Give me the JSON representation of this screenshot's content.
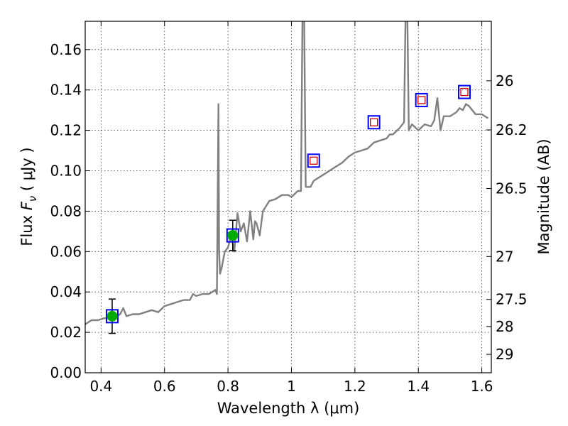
{
  "chart_data": {
    "type": "line",
    "xlabel": "Wavelength  λ (μm)",
    "ylabel": "Flux  F_ν  ( μJy )",
    "ylabel_parts": {
      "prefix": "Flux  ",
      "symbol": "F",
      "sub": "ν",
      "unit": "  ( μJy )"
    },
    "y2label": "Magnitude (AB)",
    "xlim": [
      0.35,
      1.63
    ],
    "ylim": [
      0.0,
      0.174
    ],
    "grid": true,
    "x_ticks": [
      {
        "v": 0.4,
        "label": "0.4"
      },
      {
        "v": 0.6,
        "label": "0.6"
      },
      {
        "v": 0.8,
        "label": "0.8"
      },
      {
        "v": 1.0,
        "label": "1"
      },
      {
        "v": 1.2,
        "label": "1.2"
      },
      {
        "v": 1.4,
        "label": "1.4"
      },
      {
        "v": 1.6,
        "label": "1.6"
      }
    ],
    "y_ticks": [
      {
        "v": 0.0,
        "label": "0.00"
      },
      {
        "v": 0.02,
        "label": "0.02"
      },
      {
        "v": 0.04,
        "label": "0.04"
      },
      {
        "v": 0.06,
        "label": "0.06"
      },
      {
        "v": 0.08,
        "label": "0.08"
      },
      {
        "v": 0.1,
        "label": "0.10"
      },
      {
        "v": 0.12,
        "label": "0.12"
      },
      {
        "v": 0.14,
        "label": "0.14"
      },
      {
        "v": 0.16,
        "label": "0.16"
      }
    ],
    "y2_ticks": [
      {
        "mag": 26,
        "label": "26"
      },
      {
        "mag": 26.2,
        "label": "26.2"
      },
      {
        "mag": 26.5,
        "label": "26.5"
      },
      {
        "mag": 27,
        "label": "27"
      },
      {
        "mag": 27.5,
        "label": "27.5"
      },
      {
        "mag": 28,
        "label": "28"
      },
      {
        "mag": 29,
        "label": "29"
      }
    ],
    "colors": {
      "model": "#808080",
      "observed_fill": "#00aa00",
      "box_edge": "#0000ff",
      "model_square_edge": "#cc0000",
      "errorbar": "#000000"
    },
    "series": [
      {
        "role": "model_sed",
        "x": [
          0.35,
          0.37,
          0.39,
          0.41,
          0.43,
          0.45,
          0.46,
          0.47,
          0.48,
          0.5,
          0.52,
          0.54,
          0.56,
          0.58,
          0.6,
          0.62,
          0.64,
          0.66,
          0.68,
          0.69,
          0.7,
          0.72,
          0.74,
          0.75,
          0.76,
          0.765,
          0.77,
          0.772,
          0.775,
          0.78,
          0.79,
          0.8,
          0.81,
          0.82,
          0.83,
          0.84,
          0.85,
          0.86,
          0.87,
          0.88,
          0.885,
          0.89,
          0.9,
          0.91,
          0.93,
          0.95,
          0.97,
          0.99,
          1.0,
          1.02,
          1.03,
          1.035,
          1.04,
          1.045,
          1.05,
          1.06,
          1.07,
          1.08,
          1.1,
          1.12,
          1.14,
          1.16,
          1.18,
          1.2,
          1.22,
          1.24,
          1.26,
          1.28,
          1.3,
          1.31,
          1.32,
          1.34,
          1.355,
          1.36,
          1.365,
          1.37,
          1.38,
          1.4,
          1.42,
          1.44,
          1.45,
          1.46,
          1.47,
          1.48,
          1.5,
          1.52,
          1.53,
          1.54,
          1.55,
          1.56,
          1.58,
          1.6,
          1.62
        ],
        "y": [
          0.024,
          0.026,
          0.026,
          0.027,
          0.027,
          0.028,
          0.029,
          0.032,
          0.028,
          0.029,
          0.029,
          0.03,
          0.031,
          0.03,
          0.033,
          0.034,
          0.035,
          0.036,
          0.036,
          0.039,
          0.038,
          0.039,
          0.039,
          0.04,
          0.041,
          0.039,
          0.133,
          0.06,
          0.049,
          0.052,
          0.06,
          0.062,
          0.068,
          0.06,
          0.079,
          0.07,
          0.074,
          0.065,
          0.08,
          0.066,
          0.075,
          0.074,
          0.068,
          0.08,
          0.085,
          0.086,
          0.088,
          0.088,
          0.087,
          0.09,
          0.09,
          0.18,
          0.18,
          0.092,
          0.092,
          0.092,
          0.095,
          0.096,
          0.098,
          0.1,
          0.102,
          0.104,
          0.107,
          0.109,
          0.11,
          0.111,
          0.114,
          0.115,
          0.116,
          0.118,
          0.118,
          0.121,
          0.124,
          0.18,
          0.18,
          0.12,
          0.123,
          0.12,
          0.123,
          0.122,
          0.125,
          0.136,
          0.12,
          0.127,
          0.127,
          0.129,
          0.131,
          0.13,
          0.133,
          0.132,
          0.128,
          0.128,
          0.126
        ]
      },
      {
        "role": "observed",
        "x": [
          0.435,
          0.815
        ],
        "y": [
          0.028,
          0.068
        ],
        "yerr": [
          0.0085,
          0.0075
        ]
      },
      {
        "role": "model_photometry",
        "x": [
          1.07,
          1.26,
          1.41,
          1.545
        ],
        "y": [
          0.105,
          0.124,
          0.135,
          0.139
        ]
      }
    ]
  }
}
